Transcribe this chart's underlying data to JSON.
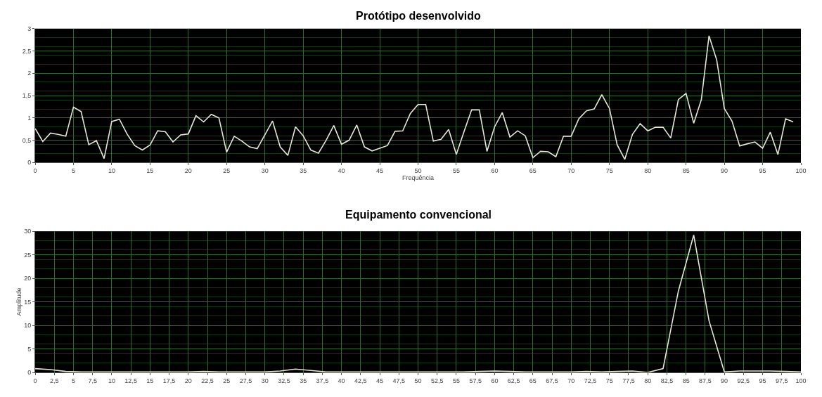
{
  "chart_data": [
    {
      "type": "line",
      "title": "Protótipo desenvolvido",
      "xlabel": "Frequência",
      "x": [
        0,
        1,
        2,
        3,
        4,
        5,
        6,
        7,
        8,
        9,
        10,
        11,
        12,
        13,
        14,
        15,
        16,
        17,
        18,
        19,
        20,
        21,
        22,
        23,
        24,
        25,
        26,
        27,
        28,
        29,
        30,
        31,
        32,
        33,
        34,
        35,
        36,
        37,
        38,
        39,
        40,
        41,
        42,
        43,
        44,
        45,
        46,
        47,
        48,
        49,
        50,
        51,
        52,
        53,
        54,
        55,
        56,
        57,
        58,
        59,
        60,
        61,
        62,
        63,
        64,
        65,
        66,
        67,
        68,
        69,
        70,
        71,
        72,
        73,
        74,
        75,
        76,
        77,
        78,
        79,
        80,
        81,
        82,
        83,
        84,
        85,
        86,
        87,
        88,
        89,
        90,
        91,
        92,
        93,
        94,
        95,
        96,
        97,
        98,
        99
      ],
      "series": [
        {
          "color": "#e6e6d8",
          "values": [
            0.76,
            0.47,
            0.66,
            0.63,
            0.59,
            1.24,
            1.14,
            0.4,
            0.49,
            0.09,
            0.92,
            0.97,
            0.64,
            0.38,
            0.28,
            0.39,
            0.71,
            0.69,
            0.46,
            0.62,
            0.64,
            1.05,
            0.91,
            1.08,
            1.0,
            0.23,
            0.59,
            0.48,
            0.35,
            0.31,
            0.62,
            0.93,
            0.35,
            0.16,
            0.8,
            0.6,
            0.28,
            0.21,
            0.5,
            0.83,
            0.41,
            0.5,
            0.84,
            0.35,
            0.26,
            0.32,
            0.38,
            0.7,
            0.71,
            1.1,
            1.3,
            1.3,
            0.48,
            0.52,
            0.74,
            0.18,
            0.69,
            1.18,
            1.18,
            0.25,
            0.8,
            1.12,
            0.57,
            0.71,
            0.6,
            0.11,
            0.25,
            0.24,
            0.13,
            0.59,
            0.59,
            0.98,
            1.16,
            1.2,
            1.52,
            1.21,
            0.4,
            0.07,
            0.63,
            0.87,
            0.71,
            0.79,
            0.79,
            0.55,
            1.41,
            1.55,
            0.88,
            1.41,
            2.84,
            2.3,
            1.21,
            0.93,
            0.37,
            0.42,
            0.46,
            0.32,
            0.68,
            0.18,
            0.98,
            0.91
          ]
        }
      ],
      "xlim": [
        0,
        100
      ],
      "xticks": [
        0,
        5,
        10,
        15,
        20,
        25,
        30,
        35,
        40,
        45,
        50,
        55,
        60,
        65,
        70,
        75,
        80,
        85,
        90,
        95,
        100
      ],
      "ylim": [
        0,
        3
      ],
      "yticks": [
        0,
        {
          "value": 0.5,
          "label": "0,5"
        },
        1,
        {
          "value": 1.5,
          "label": "1,5"
        },
        2,
        {
          "value": 2.5,
          "label": "2,5"
        },
        3
      ],
      "grid": true
    },
    {
      "type": "line",
      "title": "Equipamento convencional",
      "ylabel": "Amplitude",
      "x": [
        0,
        2,
        4,
        6,
        8,
        10,
        12,
        14,
        16,
        18,
        20,
        22,
        24,
        26,
        28,
        30,
        32,
        34,
        36,
        38,
        40,
        42,
        44,
        46,
        48,
        50,
        52,
        54,
        56,
        58,
        60,
        62,
        64,
        66,
        68,
        70,
        72,
        74,
        76,
        78,
        80,
        82,
        84,
        86,
        88,
        90,
        92,
        94,
        96,
        98,
        100
      ],
      "series": [
        {
          "color": "#e6e6d8",
          "values": [
            0.8,
            0.6,
            0.2,
            0.1,
            0.1,
            0.1,
            0.1,
            0.1,
            0.1,
            0.1,
            0.1,
            0.2,
            0.1,
            0.1,
            0.1,
            0.1,
            0.3,
            0.7,
            0.4,
            0.1,
            0.1,
            0.1,
            0.1,
            0.1,
            0.1,
            0.1,
            0.1,
            0.1,
            0.1,
            0.2,
            0.3,
            0.2,
            0.1,
            0.1,
            0.1,
            0.1,
            0.2,
            0.1,
            0.2,
            0.3,
            0,
            0.8,
            17.3,
            29.2,
            11,
            0.1,
            0.3,
            0.3,
            0.3,
            0.2,
            0.1
          ]
        }
      ],
      "xlim": [
        0,
        100
      ],
      "xticks": [
        0,
        {
          "value": 2.5,
          "label": "2,5"
        },
        5,
        {
          "value": 7.5,
          "label": "7,5"
        },
        10,
        {
          "value": 12.5,
          "label": "12,5"
        },
        15,
        {
          "value": 17.5,
          "label": "17,5"
        },
        20,
        {
          "value": 22.5,
          "label": "22,5"
        },
        25,
        {
          "value": 27.5,
          "label": "27,5"
        },
        30,
        {
          "value": 32.5,
          "label": "32,5"
        },
        35,
        {
          "value": 37.5,
          "label": "37,5"
        },
        40,
        {
          "value": 42.5,
          "label": "42,5"
        },
        45,
        {
          "value": 47.5,
          "label": "47,5"
        },
        50,
        {
          "value": 52.5,
          "label": "52,5"
        },
        55,
        {
          "value": 57.5,
          "label": "57,5"
        },
        60,
        {
          "value": 62.5,
          "label": "62,5"
        },
        65,
        {
          "value": 67.5,
          "label": "67,5"
        },
        70,
        {
          "value": 72.5,
          "label": "72,5"
        },
        75,
        {
          "value": 77.5,
          "label": "77,5"
        },
        80,
        {
          "value": 82.5,
          "label": "82,5"
        },
        85,
        {
          "value": 87.5,
          "label": "87,5"
        },
        90,
        {
          "value": 92.5,
          "label": "92,5"
        },
        95,
        {
          "value": 97.5,
          "label": "97,5"
        },
        100
      ],
      "ylim": [
        0,
        30
      ],
      "yticks": [
        0,
        5,
        10,
        15,
        20,
        25,
        30
      ],
      "grid": true
    }
  ]
}
